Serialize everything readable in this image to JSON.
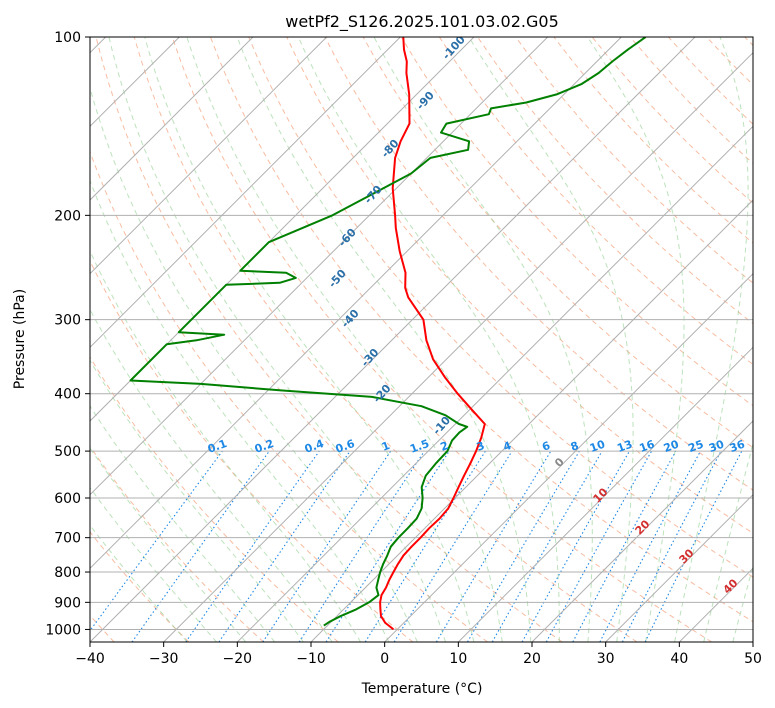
{
  "chart_data": {
    "type": "line",
    "subtype": "skew-t log-p diagram",
    "title": "wetPf2_S126.2025.101.03.02.G05",
    "xlabel": "Temperature (°C)",
    "ylabel": "Pressure (hPa)",
    "xlim": [
      -40,
      50
    ],
    "ylim": [
      1050,
      100
    ],
    "y_scale": "log",
    "x_ticks": [
      -40,
      -30,
      -20,
      -10,
      0,
      10,
      20,
      30,
      40,
      50
    ],
    "x_tick_labels": [
      "−40",
      "−30",
      "−20",
      "−10",
      "0",
      "10",
      "20",
      "30",
      "40",
      "50"
    ],
    "y_ticks": [
      1000,
      900,
      800,
      700,
      600,
      500,
      400,
      300,
      200,
      100
    ],
    "y_tick_labels": [
      "1000",
      "900",
      "800",
      "700",
      "600",
      "500",
      "400",
      "300",
      "200",
      "100"
    ],
    "grid": true,
    "series": [
      {
        "role": "temperature",
        "color": "#ff0000",
        "points": [
          [
            1000,
            -0.5
          ],
          [
            975,
            -2.5
          ],
          [
            950,
            -4
          ],
          [
            925,
            -5
          ],
          [
            900,
            -6
          ],
          [
            875,
            -6.8
          ],
          [
            850,
            -7.2
          ],
          [
            825,
            -7.8
          ],
          [
            800,
            -8.3
          ],
          [
            775,
            -8.8
          ],
          [
            750,
            -9.2
          ],
          [
            725,
            -9.3
          ],
          [
            700,
            -9.3
          ],
          [
            675,
            -9.4
          ],
          [
            650,
            -9.3
          ],
          [
            625,
            -9.5
          ],
          [
            600,
            -10.2
          ],
          [
            575,
            -11
          ],
          [
            550,
            -11.8
          ],
          [
            525,
            -12.6
          ],
          [
            500,
            -13.5
          ],
          [
            475,
            -14.6
          ],
          [
            450,
            -16
          ],
          [
            425,
            -19.8
          ],
          [
            400,
            -23.8
          ],
          [
            375,
            -27.8
          ],
          [
            350,
            -31.8
          ],
          [
            325,
            -35.3
          ],
          [
            300,
            -38.5
          ],
          [
            275,
            -43.6
          ],
          [
            265,
            -45.3
          ],
          [
            250,
            -47.3
          ],
          [
            230,
            -51
          ],
          [
            210,
            -54.7
          ],
          [
            200,
            -56.5
          ],
          [
            180,
            -60.5
          ],
          [
            160,
            -64.3
          ],
          [
            150,
            -65.8
          ],
          [
            140,
            -67
          ],
          [
            125,
            -71
          ],
          [
            115,
            -74.3
          ],
          [
            110,
            -75.8
          ],
          [
            105,
            -77.8
          ],
          [
            100,
            -79.6
          ]
        ]
      },
      {
        "role": "dewpoint",
        "color": "#008000",
        "points": [
          [
            985,
            -10.5
          ],
          [
            970,
            -10.2
          ],
          [
            950,
            -9.5
          ],
          [
            925,
            -8.3
          ],
          [
            900,
            -7.5
          ],
          [
            875,
            -7.2
          ],
          [
            850,
            -8.5
          ],
          [
            825,
            -9.3
          ],
          [
            800,
            -10.1
          ],
          [
            775,
            -10.8
          ],
          [
            750,
            -11.4
          ],
          [
            725,
            -12.1
          ],
          [
            700,
            -12.3
          ],
          [
            675,
            -12.3
          ],
          [
            650,
            -12.4
          ],
          [
            625,
            -13.1
          ],
          [
            600,
            -14.4
          ],
          [
            575,
            -16
          ],
          [
            550,
            -17
          ],
          [
            525,
            -17.3
          ],
          [
            500,
            -17.4
          ],
          [
            480,
            -18.2
          ],
          [
            465,
            -18.3
          ],
          [
            455,
            -18
          ],
          [
            450,
            -19.5
          ],
          [
            435,
            -22.5
          ],
          [
            420,
            -27
          ],
          [
            405,
            -35
          ],
          [
            395,
            -48
          ],
          [
            385,
            -60
          ],
          [
            380,
            -70
          ],
          [
            330,
            -70
          ],
          [
            325,
            -66.5
          ],
          [
            318,
            -63.5
          ],
          [
            315,
            -70
          ],
          [
            262,
            -70
          ],
          [
            260,
            -63
          ],
          [
            255,
            -61.5
          ],
          [
            250,
            -63.5
          ],
          [
            248,
            -70
          ],
          [
            222,
            -70
          ],
          [
            200,
            -65
          ],
          [
            170,
            -60
          ],
          [
            160,
            -59.5
          ],
          [
            155,
            -55.5
          ],
          [
            150,
            -56.5
          ],
          [
            145,
            -61.5
          ],
          [
            140,
            -62
          ],
          [
            135,
            -57.5
          ],
          [
            132,
            -58
          ],
          [
            129,
            -54
          ],
          [
            125,
            -51
          ],
          [
            120,
            -49
          ],
          [
            115,
            -48.2
          ],
          [
            110,
            -47.9
          ],
          [
            105,
            -47.4
          ],
          [
            100,
            -46.7
          ]
        ]
      }
    ],
    "annotations": {
      "dry_adiabat_labels": [
        "-100",
        "-90",
        "-80",
        "-70",
        "-60",
        "-50",
        "-40",
        "-30",
        "-20",
        "-10"
      ],
      "mixing_ratio_labels": [
        "0.1",
        "0.2",
        "0.4",
        "0.6",
        "1",
        "1.5",
        "2",
        "3",
        "4",
        "6",
        "8",
        "10",
        "13",
        "16",
        "20",
        "25",
        "30",
        "36"
      ],
      "moist_adiabat_labels": [
        "0",
        "10",
        "20",
        "30",
        "40"
      ]
    }
  }
}
